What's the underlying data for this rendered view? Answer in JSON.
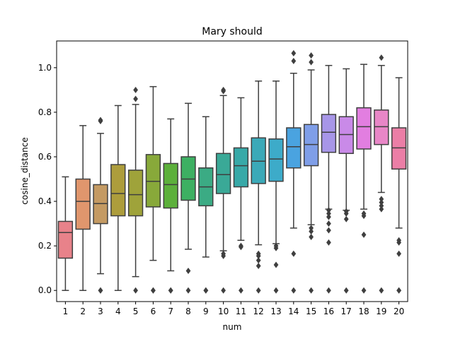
{
  "chart_data": {
    "type": "box",
    "title": "Mary should",
    "xlabel": "num",
    "ylabel": "cosine_distance",
    "ylim": [
      -0.05,
      1.12
    ],
    "yticks": [
      0.0,
      0.2,
      0.4,
      0.6,
      0.8,
      1.0
    ],
    "ytick_labels": [
      "0.0",
      "0.2",
      "0.4",
      "0.6",
      "0.8",
      "1.0"
    ],
    "grid": false,
    "categories": [
      "1",
      "2",
      "3",
      "4",
      "5",
      "6",
      "7",
      "8",
      "9",
      "10",
      "11",
      "12",
      "13",
      "14",
      "15",
      "16",
      "17",
      "18",
      "19",
      "20"
    ],
    "colors": [
      "#e8828a",
      "#e0966d",
      "#c49a63",
      "#ad9d3c",
      "#9fa33a",
      "#88a93a",
      "#5cb03b",
      "#3db062",
      "#3bab84",
      "#3aa997",
      "#38a9a8",
      "#3ba9b8",
      "#3dabc9",
      "#4aa3e0",
      "#7f9ee8",
      "#a796e8",
      "#c98ae8",
      "#e27ee0",
      "#e886c7",
      "#eb7ea6"
    ],
    "series": [
      {
        "category": "1",
        "whisker_low": 0.0,
        "q1": 0.145,
        "median": 0.26,
        "q3": 0.31,
        "whisker_high": 0.51,
        "outliers": []
      },
      {
        "category": "2",
        "whisker_low": 0.0,
        "q1": 0.275,
        "median": 0.4,
        "q3": 0.5,
        "whisker_high": 0.74,
        "outliers": []
      },
      {
        "category": "3",
        "whisker_low": 0.075,
        "q1": 0.3,
        "median": 0.39,
        "q3": 0.475,
        "whisker_high": 0.705,
        "outliers": [
          0.0,
          0.0,
          0.765,
          0.76
        ]
      },
      {
        "category": "4",
        "whisker_low": 0.0,
        "q1": 0.335,
        "median": 0.435,
        "q3": 0.565,
        "whisker_high": 0.83,
        "outliers": []
      },
      {
        "category": "5",
        "whisker_low": 0.062,
        "q1": 0.335,
        "median": 0.43,
        "q3": 0.54,
        "whisker_high": 0.835,
        "outliers": [
          0.0,
          0.86,
          0.9
        ]
      },
      {
        "category": "6",
        "whisker_low": 0.135,
        "q1": 0.375,
        "median": 0.49,
        "q3": 0.61,
        "whisker_high": 0.915,
        "outliers": [
          0.0,
          0.0
        ]
      },
      {
        "category": "7",
        "whisker_low": 0.088,
        "q1": 0.37,
        "median": 0.475,
        "q3": 0.57,
        "whisker_high": 0.77,
        "outliers": [
          0.0,
          0.0
        ]
      },
      {
        "category": "8",
        "whisker_low": 0.185,
        "q1": 0.405,
        "median": 0.5,
        "q3": 0.6,
        "whisker_high": 0.84,
        "outliers": [
          0.0,
          0.088
        ]
      },
      {
        "category": "9",
        "whisker_low": 0.15,
        "q1": 0.38,
        "median": 0.465,
        "q3": 0.55,
        "whisker_high": 0.78,
        "outliers": [
          0.0,
          0.0
        ]
      },
      {
        "category": "10",
        "whisker_low": 0.178,
        "q1": 0.435,
        "median": 0.52,
        "q3": 0.615,
        "whisker_high": 0.875,
        "outliers": [
          0.0,
          0.155,
          0.165,
          0.895,
          0.9
        ]
      },
      {
        "category": "11",
        "whisker_low": 0.225,
        "q1": 0.465,
        "median": 0.56,
        "q3": 0.64,
        "whisker_high": 0.865,
        "outliers": [
          0.0,
          0.195,
          0.2
        ]
      },
      {
        "category": "12",
        "whisker_low": 0.205,
        "q1": 0.48,
        "median": 0.58,
        "q3": 0.685,
        "whisker_high": 0.94,
        "outliers": [
          0.0,
          0.11,
          0.135,
          0.155,
          0.165
        ]
      },
      {
        "category": "13",
        "whisker_low": 0.21,
        "q1": 0.49,
        "median": 0.59,
        "q3": 0.68,
        "whisker_high": 0.94,
        "outliers": [
          0.0,
          0.115,
          0.19,
          0.2
        ]
      },
      {
        "category": "14",
        "whisker_low": 0.28,
        "q1": 0.55,
        "median": 0.645,
        "q3": 0.73,
        "whisker_high": 0.975,
        "outliers": [
          0.0,
          0.165,
          1.03,
          1.065
        ]
      },
      {
        "category": "15",
        "whisker_low": 0.295,
        "q1": 0.56,
        "median": 0.655,
        "q3": 0.745,
        "whisker_high": 0.99,
        "outliers": [
          0.0,
          0.24,
          0.265,
          0.28,
          1.025,
          1.055
        ]
      },
      {
        "category": "16",
        "whisker_low": 0.365,
        "q1": 0.62,
        "median": 0.71,
        "q3": 0.79,
        "whisker_high": 1.01,
        "outliers": [
          0.0,
          0.215,
          0.27,
          0.3,
          0.33,
          0.345,
          0.36
        ]
      },
      {
        "category": "17",
        "whisker_low": 0.36,
        "q1": 0.615,
        "median": 0.7,
        "q3": 0.78,
        "whisker_high": 0.995,
        "outliers": [
          0.0,
          0.32,
          0.345,
          0.355
        ]
      },
      {
        "category": "18",
        "whisker_low": 0.365,
        "q1": 0.635,
        "median": 0.735,
        "q3": 0.82,
        "whisker_high": 1.015,
        "outliers": [
          0.0,
          0.25,
          0.335,
          0.345
        ]
      },
      {
        "category": "19",
        "whisker_low": 0.44,
        "q1": 0.655,
        "median": 0.735,
        "q3": 0.81,
        "whisker_high": 1.01,
        "outliers": [
          0.0,
          0.365,
          0.38,
          0.395,
          0.41,
          1.045
        ]
      },
      {
        "category": "20",
        "whisker_low": 0.28,
        "q1": 0.545,
        "median": 0.64,
        "q3": 0.73,
        "whisker_high": 0.955,
        "outliers": [
          0.0,
          0.0,
          0.165,
          0.215,
          0.225
        ]
      }
    ]
  }
}
